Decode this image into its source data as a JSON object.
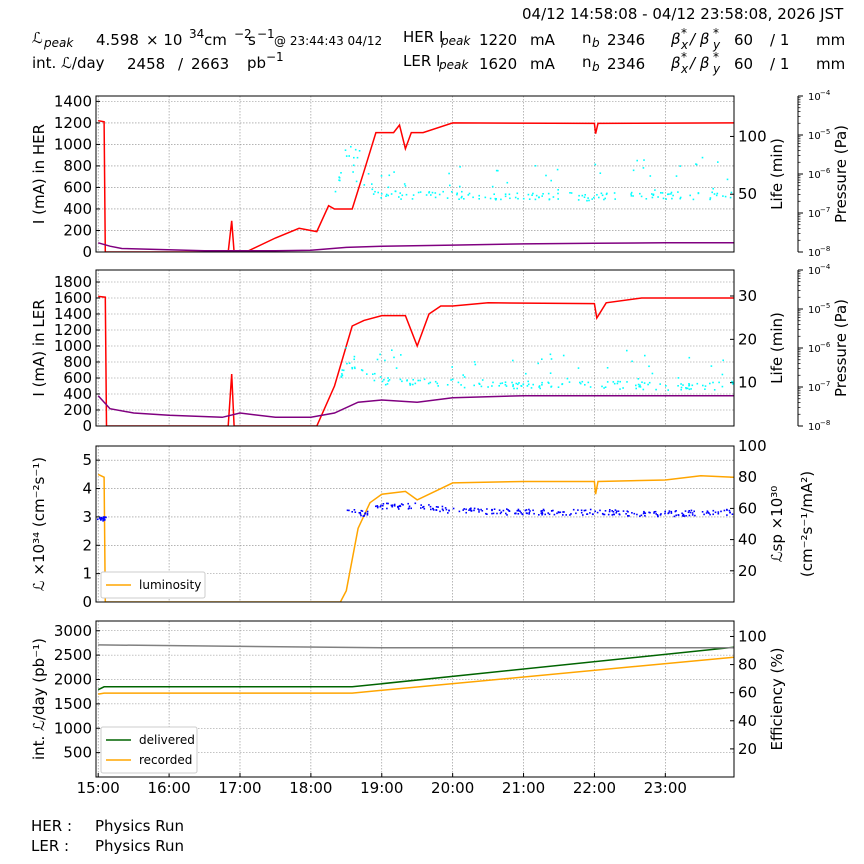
{
  "header": {
    "date_range": "04/12 14:58:08 - 04/12 23:58:08, 2026 JST",
    "lpeak_label": "ℒ",
    "lpeak_sub": "peak",
    "lpeak_mantissa": "4.598",
    "lpeak_times": "× 10",
    "lpeak_exp": "34",
    "lpeak_unit": "cm",
    "lpeak_unit_exp1": "−2",
    "lpeak_unit_s": "s",
    "lpeak_unit_exp2": "−1",
    "lpeak_at": "@ 23:44:43 04/12",
    "intl_label": "int. ℒ/day",
    "intl_value1": "2458",
    "intl_sep": "/",
    "intl_value2": "2663",
    "intl_unit": "pb",
    "intl_unit_exp": "−1",
    "her_ipeak_label": "HER I",
    "ler_ipeak_label": "LER I",
    "ipeak_sub": "peak",
    "her_ipeak_value": "1220",
    "ler_ipeak_value": "1620",
    "ipeak_unit": "mA",
    "nb_label": "n",
    "nb_sub": "b",
    "her_nb": "2346",
    "ler_nb": "2346",
    "beta_x": "β",
    "beta_x_sub": "x",
    "beta_sep": "/ β",
    "beta_y_sub": "y",
    "beta_star": "*",
    "beta_value": "60",
    "beta_ratio": "/ 1",
    "beta_unit": "mm"
  },
  "footer": {
    "her_label": "HER :",
    "her_status": "Physics Run",
    "ler_label": "LER :",
    "ler_status": "Physics Run"
  },
  "colors": {
    "current": "#ff0000",
    "life": "#800080",
    "pressure": "#00ffff",
    "luminosity": "#ffa500",
    "specific": "#0000ff",
    "delivered": "#006400",
    "recorded": "#ffa500",
    "efficiency": "#808080"
  },
  "chart_data": [
    {
      "type": "line",
      "id": "her",
      "ylabel": "I (mA) in HER",
      "ylabel_right": "Life (min)",
      "ylabel_right2": "Pressure (Pa)",
      "ylim": [
        0,
        1450
      ],
      "yticks": [
        "0",
        "200",
        "400",
        "600",
        "800",
        "1000",
        "1200",
        "1400"
      ],
      "y2lim": [
        0,
        135
      ],
      "y2ticks": [
        "50",
        "100"
      ],
      "log_ticks": [
        "10",
        "10",
        "10",
        "10",
        "10"
      ],
      "log_exps": [
        "−8",
        "−7",
        "−6",
        "−5",
        "−4"
      ],
      "grid": true,
      "series": [
        {
          "key": "current",
          "x": [
            "15:00",
            "15:05",
            "15:06",
            "15:07",
            "16:50",
            "16:53",
            "16:55",
            "17:05",
            "17:30",
            "17:50",
            "18:05",
            "18:15",
            "18:20",
            "18:35",
            "18:45",
            "18:55",
            "19:00",
            "19:10",
            "19:15",
            "19:20",
            "19:25",
            "19:35",
            "20:00",
            "22:00",
            "22:01",
            "22:03",
            "23:58"
          ],
          "y": [
            1220,
            1210,
            0,
            0,
            0,
            290,
            0,
            0,
            130,
            220,
            190,
            430,
            400,
            400,
            750,
            1110,
            1110,
            1110,
            1180,
            960,
            1110,
            1110,
            1200,
            1195,
            1100,
            1195,
            1200
          ]
        },
        {
          "key": "life",
          "x": [
            "15:00",
            "15:10",
            "15:20",
            "16:30",
            "17:30",
            "18:00",
            "18:30",
            "19:00",
            "20:00",
            "21:00",
            "22:00",
            "23:00",
            "23:58"
          ],
          "y": [
            8,
            5,
            3,
            1,
            1,
            1.5,
            4,
            5,
            6,
            7,
            7.5,
            8,
            8
          ]
        },
        {
          "key": "pressure",
          "x": [
            "18:20",
            "18:30",
            "18:40",
            "19:00",
            "20:00",
            "21:00",
            "22:00",
            "23:00",
            "23:58"
          ],
          "y": [
            3.2e-07,
            3.5e-06,
            5e-07,
            3e-07,
            3e-07,
            2.8e-07,
            2.7e-07,
            2.9e-07,
            3e-07
          ]
        }
      ]
    },
    {
      "type": "line",
      "id": "ler",
      "ylabel": "I (mA) in LER",
      "ylabel_right": "Life (min)",
      "ylabel_right2": "Pressure (Pa)",
      "ylim": [
        0,
        1950
      ],
      "yticks": [
        "0",
        "200",
        "400",
        "600",
        "800",
        "1000",
        "1200",
        "1400",
        "1600",
        "1800"
      ],
      "y2lim": [
        0,
        36
      ],
      "y2ticks": [
        "10",
        "20",
        "30"
      ],
      "log_ticks": [
        "10",
        "10",
        "10",
        "10",
        "10"
      ],
      "log_exps": [
        "−8",
        "−7",
        "−6",
        "−5",
        "−4"
      ],
      "grid": true,
      "series": [
        {
          "key": "current",
          "x": [
            "15:00",
            "15:06",
            "15:07",
            "16:50",
            "16:53",
            "16:55",
            "17:05",
            "17:15",
            "18:05",
            "18:20",
            "18:30",
            "18:35",
            "18:45",
            "19:00",
            "19:20",
            "19:30",
            "19:40",
            "19:50",
            "20:00",
            "20:30",
            "22:00",
            "22:02",
            "22:10",
            "22:40",
            "23:58"
          ],
          "y": [
            1620,
            1610,
            0,
            0,
            650,
            0,
            0,
            0,
            0,
            500,
            1000,
            1250,
            1320,
            1380,
            1380,
            1000,
            1400,
            1500,
            1500,
            1540,
            1530,
            1350,
            1540,
            1600,
            1600
          ]
        },
        {
          "key": "life",
          "x": [
            "15:00",
            "15:10",
            "15:30",
            "16:00",
            "16:45",
            "17:00",
            "17:30",
            "18:00",
            "18:20",
            "18:40",
            "19:00",
            "19:30",
            "20:00",
            "21:00",
            "22:00",
            "23:00",
            "23:58"
          ],
          "y": [
            7,
            4,
            3,
            2.5,
            2,
            3,
            2,
            2,
            3,
            5.5,
            6,
            5.5,
            6.5,
            7,
            7,
            7,
            7
          ]
        },
        {
          "key": "pressure",
          "x": [
            "18:25",
            "18:30",
            "19:00",
            "20:00",
            "21:00",
            "22:00",
            "23:00",
            "23:58"
          ],
          "y": [
            2e-07,
            4e-07,
            1.5e-07,
            1.3e-07,
            1.2e-07,
            1.2e-07,
            1.1e-07,
            1.1e-07
          ]
        }
      ]
    },
    {
      "type": "line",
      "id": "lumi",
      "ylabel": "ℒ ×10³⁴ (cm⁻²s⁻¹)",
      "ylabel_right": "ℒsp ×10³⁰",
      "ylabel_right_unit": "(cm⁻²s⁻¹/mA²)",
      "ylim": [
        0,
        5.5
      ],
      "yticks": [
        "0",
        "1",
        "2",
        "3",
        "4",
        "5"
      ],
      "y2lim": [
        0,
        100
      ],
      "y2ticks": [
        "20",
        "40",
        "60",
        "80",
        "100"
      ],
      "grid": true,
      "legend": [
        "luminosity"
      ],
      "legend_loc": "lower-left",
      "series": [
        {
          "key": "luminosity",
          "x": [
            "15:00",
            "15:05",
            "15:06",
            "18:25",
            "18:30",
            "18:40",
            "18:50",
            "19:00",
            "19:20",
            "19:30",
            "19:45",
            "20:00",
            "21:00",
            "22:00",
            "22:01",
            "22:03",
            "23:00",
            "23:30",
            "23:58"
          ],
          "y": [
            4.5,
            4.4,
            0,
            0,
            0.4,
            2.6,
            3.5,
            3.8,
            3.9,
            3.6,
            3.9,
            4.2,
            4.25,
            4.25,
            3.8,
            4.25,
            4.3,
            4.45,
            4.4
          ]
        },
        {
          "key": "specific",
          "x": [
            "15:00",
            "15:05",
            "18:20",
            "18:30",
            "18:45",
            "19:00",
            "19:30",
            "20:00",
            "21:00",
            "22:00",
            "23:00",
            "23:58"
          ],
          "y": [
            54,
            54,
            null,
            60,
            57,
            62,
            62,
            59,
            58,
            58,
            57,
            58
          ]
        }
      ]
    },
    {
      "type": "line",
      "id": "intlumi",
      "ylabel": "int. ℒ/day (pb⁻¹)",
      "ylabel_right": "Efficiency (%)",
      "ylim": [
        0,
        3200
      ],
      "yticks": [
        "500",
        "1000",
        "1500",
        "2000",
        "2500",
        "3000"
      ],
      "y2lim": [
        0,
        111
      ],
      "y2ticks": [
        "20",
        "40",
        "60",
        "80",
        "100"
      ],
      "xticks": [
        "15:00",
        "16:00",
        "17:00",
        "18:00",
        "19:00",
        "20:00",
        "21:00",
        "22:00",
        "23:00"
      ],
      "grid": true,
      "legend": [
        "delivered",
        "recorded"
      ],
      "legend_loc": "lower-left",
      "series": [
        {
          "key": "delivered",
          "name": "delivered",
          "x": [
            "15:00",
            "15:05",
            "18:35",
            "23:58"
          ],
          "y": [
            1790,
            1850,
            1850,
            2663
          ]
        },
        {
          "key": "recorded",
          "name": "recorded",
          "x": [
            "15:00",
            "15:05",
            "18:35",
            "23:58"
          ],
          "y": [
            1700,
            1720,
            1720,
            2458
          ]
        },
        {
          "key": "efficiency",
          "x": [
            "15:00",
            "19:00",
            "23:58"
          ],
          "y": [
            94,
            92,
            92
          ]
        }
      ]
    }
  ]
}
